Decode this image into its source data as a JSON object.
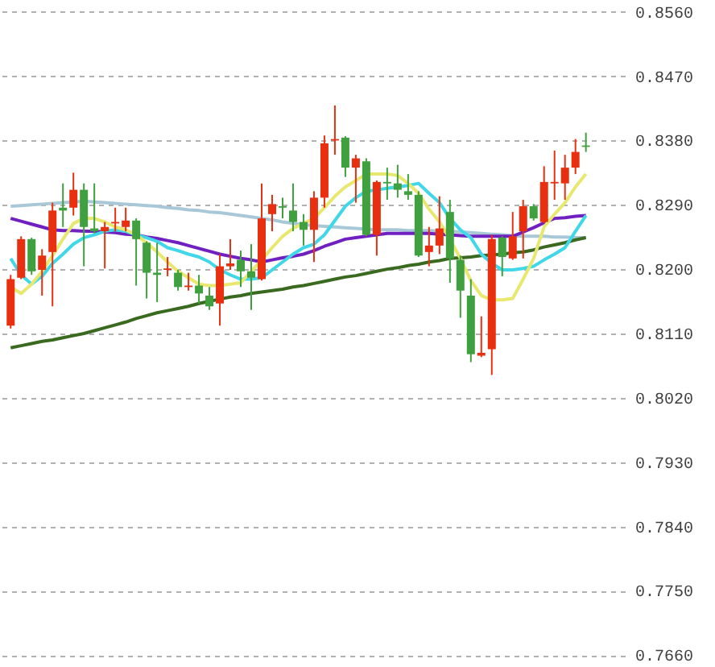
{
  "chart_data": {
    "type": "candlestick",
    "categories": [
      null,
      null,
      null,
      null,
      null,
      null,
      null,
      null,
      null,
      null,
      null,
      null,
      null,
      null,
      null,
      null,
      null,
      null,
      null,
      null,
      null,
      null,
      null,
      null,
      null,
      null,
      null,
      null,
      null,
      null,
      null,
      null,
      null,
      null,
      null,
      null,
      null,
      null,
      null,
      null,
      null,
      null,
      null,
      null,
      null,
      null,
      null,
      null,
      null,
      null,
      null,
      null,
      null,
      null,
      null,
      null
    ],
    "ohlc": [
      [
        0.8121,
        0.8192,
        0.8117,
        0.8186
      ],
      [
        0.8188,
        0.8246,
        0.8186,
        0.8242
      ],
      [
        0.8242,
        0.8244,
        0.8192,
        0.8197
      ],
      [
        0.8199,
        0.8228,
        0.8163,
        0.8219
      ],
      [
        0.8224,
        0.8293,
        0.8148,
        0.8282
      ],
      [
        0.8286,
        0.832,
        0.8259,
        0.8282
      ],
      [
        0.8286,
        0.8335,
        0.8275,
        0.8311
      ],
      [
        0.8311,
        0.832,
        0.8204,
        0.8259
      ],
      [
        0.8257,
        0.832,
        0.825,
        0.8253
      ],
      [
        0.8253,
        0.8266,
        0.8201,
        0.8259
      ],
      [
        0.8264,
        0.8286,
        0.8253,
        0.8266
      ],
      [
        0.8259,
        0.8286,
        0.8253,
        0.8268
      ],
      [
        0.8268,
        0.8271,
        0.8177,
        0.8242
      ],
      [
        0.8237,
        0.8239,
        0.8159,
        0.8195
      ],
      [
        0.8195,
        0.8237,
        0.8154,
        0.8192
      ],
      [
        0.8199,
        0.8217,
        0.819,
        0.8201
      ],
      [
        0.8195,
        0.8199,
        0.817,
        0.8175
      ],
      [
        0.8175,
        0.8195,
        0.817,
        0.8177
      ],
      [
        0.8177,
        0.8192,
        0.8152,
        0.8166
      ],
      [
        0.8163,
        0.8175,
        0.8143,
        0.8148
      ],
      [
        0.8152,
        0.8221,
        0.8121,
        0.8204
      ],
      [
        0.8204,
        0.8242,
        0.8199,
        0.8208
      ],
      [
        0.8213,
        0.8226,
        0.8175,
        0.8197
      ],
      [
        0.8197,
        0.8235,
        0.8143,
        0.8188
      ],
      [
        0.8186,
        0.832,
        0.8184,
        0.8271
      ],
      [
        0.8277,
        0.8304,
        0.8253,
        0.8291
      ],
      [
        0.8288,
        0.83,
        0.8271,
        0.8286
      ],
      [
        0.8282,
        0.832,
        0.8253,
        0.8266
      ],
      [
        0.8266,
        0.8277,
        0.8233,
        0.8255
      ],
      [
        0.8255,
        0.8309,
        0.821,
        0.83
      ],
      [
        0.83,
        0.8387,
        0.8286,
        0.8376
      ],
      [
        0.838,
        0.8429,
        0.836,
        0.8382
      ],
      [
        0.8384,
        0.8386,
        0.8329,
        0.8342
      ],
      [
        0.8342,
        0.836,
        0.8293,
        0.8355
      ],
      [
        0.8351,
        0.8355,
        0.8246,
        0.8248
      ],
      [
        0.8248,
        0.8324,
        0.8219,
        0.8322
      ],
      [
        0.8322,
        0.8342,
        0.8297,
        0.832
      ],
      [
        0.832,
        0.8346,
        0.83,
        0.8311
      ],
      [
        0.8309,
        0.8333,
        0.8297,
        0.8304
      ],
      [
        0.8304,
        0.8309,
        0.8217,
        0.8219
      ],
      [
        0.8224,
        0.8259,
        0.8204,
        0.8233
      ],
      [
        0.8233,
        0.8302,
        0.8221,
        0.8257
      ],
      [
        0.828,
        0.8297,
        0.8181,
        0.8215
      ],
      [
        0.8213,
        0.8219,
        0.8132,
        0.817
      ],
      [
        0.8163,
        0.8186,
        0.807,
        0.8081
      ],
      [
        0.8079,
        0.8134,
        0.8077,
        0.8083
      ],
      [
        0.8088,
        0.8248,
        0.8052,
        0.8242
      ],
      [
        0.8244,
        0.8246,
        0.819,
        0.8217
      ],
      [
        0.8215,
        0.828,
        0.8213,
        0.8246
      ],
      [
        0.8253,
        0.8297,
        0.8215,
        0.8288
      ],
      [
        0.8288,
        0.8291,
        0.8268,
        0.8271
      ],
      [
        0.8266,
        0.8344,
        0.8264,
        0.8322
      ],
      [
        0.832,
        0.8366,
        0.8297,
        0.8322
      ],
      [
        0.832,
        0.836,
        0.8297,
        0.8342
      ],
      [
        0.8342,
        0.8382,
        0.8333,
        0.8364
      ],
      [
        0.8373,
        0.8391,
        0.8364,
        0.8371
      ]
    ],
    "colors": [
      "#e83010",
      "#e83010",
      "#40a040",
      "#e83010",
      "#e83010",
      "#40a040",
      "#e83010",
      "#40a040",
      "#40a040",
      "#e83010",
      "#e83010",
      "#e83010",
      "#40a040",
      "#40a040",
      "#40a040",
      "#e83010",
      "#40a040",
      "#e83010",
      "#40a040",
      "#40a040",
      "#e83010",
      "#e83010",
      "#40a040",
      "#40a040",
      "#e83010",
      "#e83010",
      "#40a040",
      "#40a040",
      "#40a040",
      "#e83010",
      "#e83010",
      "#e83010",
      "#40a040",
      "#e83010",
      "#40a040",
      "#e83010",
      "#40a040",
      "#40a040",
      "#40a040",
      "#40a040",
      "#e83010",
      "#e83010",
      "#40a040",
      "#40a040",
      "#40a040",
      "#e83010",
      "#e83010",
      "#40a040",
      "#e83010",
      "#e83010",
      "#40a040",
      "#e83010",
      "#e83010",
      "#e83010",
      "#e83010",
      "#40a040"
    ],
    "series": [
      {
        "type": "line",
        "color": "#a8c8d8",
        "values": [
          0.8288,
          0.8289,
          0.829,
          0.8291,
          0.8292,
          0.8293,
          0.8294,
          0.8295,
          0.8294,
          0.8293,
          0.8292,
          0.8291,
          0.829,
          0.8289,
          0.8288,
          0.8286,
          0.8285,
          0.8283,
          0.8282,
          0.828,
          0.8279,
          0.8277,
          0.8275,
          0.8273,
          0.8271,
          0.8269,
          0.8266,
          0.8264,
          0.8262,
          0.8261,
          0.826,
          0.8259,
          0.8258,
          0.8257,
          0.8256,
          0.8255,
          0.8255,
          0.8255,
          0.8254,
          0.8254,
          0.8254,
          0.8253,
          0.8253,
          0.8252,
          0.8251,
          0.825,
          0.8249,
          0.8248,
          0.8247,
          0.8246,
          0.8246,
          0.8246,
          0.8245,
          0.8245,
          0.8244,
          0.8244
        ]
      },
      {
        "type": "line",
        "color": "#3a6a20",
        "values": [
          0.809,
          0.8093,
          0.8096,
          0.8099,
          0.8101,
          0.8104,
          0.8107,
          0.811,
          0.8114,
          0.8118,
          0.8122,
          0.8126,
          0.8131,
          0.8135,
          0.8139,
          0.8142,
          0.8145,
          0.8148,
          0.8152,
          0.8155,
          0.8158,
          0.8161,
          0.8163,
          0.8166,
          0.8168,
          0.817,
          0.8172,
          0.8175,
          0.8177,
          0.818,
          0.8183,
          0.8186,
          0.8189,
          0.8191,
          0.8194,
          0.8197,
          0.82,
          0.8202,
          0.8205,
          0.8207,
          0.821,
          0.8212,
          0.8215,
          0.8216,
          0.8217,
          0.8219,
          0.822,
          0.8221,
          0.8223,
          0.8224,
          0.8227,
          0.8231,
          0.8234,
          0.8237,
          0.8241,
          0.8244
        ]
      },
      {
        "type": "line",
        "color": "#7020c0",
        "values": [
          0.8271,
          0.8267,
          0.8263,
          0.8259,
          0.8255,
          0.8254,
          0.8254,
          0.8253,
          0.8253,
          0.8252,
          0.8251,
          0.8249,
          0.8248,
          0.8245,
          0.8243,
          0.824,
          0.8237,
          0.8233,
          0.8229,
          0.8225,
          0.8221,
          0.8218,
          0.8215,
          0.8213,
          0.821,
          0.8213,
          0.8216,
          0.8218,
          0.8221,
          0.8226,
          0.8232,
          0.8237,
          0.8242,
          0.8244,
          0.8246,
          0.8248,
          0.825,
          0.825,
          0.825,
          0.825,
          0.825,
          0.8249,
          0.8248,
          0.8247,
          0.8246,
          0.8246,
          0.8246,
          0.8246,
          0.8246,
          0.8252,
          0.8258,
          0.8265,
          0.8271,
          0.8272,
          0.8274,
          0.8275
        ]
      },
      {
        "type": "line",
        "color": "#40d8e8",
        "values": [
          0.8215,
          0.8192,
          0.8179,
          0.819,
          0.8208,
          0.8221,
          0.8235,
          0.8244,
          0.8248,
          0.8253,
          0.8255,
          0.8253,
          0.8248,
          0.8244,
          0.8239,
          0.823,
          0.8226,
          0.8221,
          0.8217,
          0.821,
          0.8199,
          0.8192,
          0.8186,
          0.8186,
          0.8188,
          0.8199,
          0.821,
          0.8221,
          0.823,
          0.8235,
          0.8248,
          0.8268,
          0.8288,
          0.83,
          0.8309,
          0.8311,
          0.8313,
          0.8315,
          0.8317,
          0.832,
          0.8306,
          0.8293,
          0.8271,
          0.8255,
          0.8244,
          0.8221,
          0.8208,
          0.8199,
          0.8199,
          0.8201,
          0.8204,
          0.8213,
          0.8221,
          0.823,
          0.8253,
          0.8275
        ]
      },
      {
        "type": "line",
        "color": "#e8e870",
        "values": [
          0.8175,
          0.8166,
          0.8179,
          0.8197,
          0.8219,
          0.8242,
          0.8264,
          0.8271,
          0.8271,
          0.8266,
          0.8259,
          0.8255,
          0.8248,
          0.8237,
          0.8224,
          0.821,
          0.8197,
          0.8188,
          0.8179,
          0.8177,
          0.8177,
          0.8179,
          0.8181,
          0.8197,
          0.8213,
          0.823,
          0.8246,
          0.8257,
          0.8264,
          0.8271,
          0.8286,
          0.8302,
          0.8315,
          0.8324,
          0.8333,
          0.8333,
          0.8333,
          0.8331,
          0.832,
          0.8306,
          0.8284,
          0.8266,
          0.8242,
          0.8215,
          0.8184,
          0.8163,
          0.8157,
          0.8157,
          0.8159,
          0.8186,
          0.8215,
          0.8259,
          0.8277,
          0.8293,
          0.8315,
          0.8333
        ]
      }
    ],
    "ylim": [
      0.7648,
      0.8572
    ],
    "yticks": [
      {
        "value": 0.856,
        "label": "0.8560"
      },
      {
        "value": 0.847,
        "label": "0.8470"
      },
      {
        "value": 0.838,
        "label": "0.8380"
      },
      {
        "value": 0.829,
        "label": "0.8290"
      },
      {
        "value": 0.82,
        "label": "0.8200"
      },
      {
        "value": 0.811,
        "label": "0.8110"
      },
      {
        "value": 0.802,
        "label": "0.8020"
      },
      {
        "value": 0.793,
        "label": "0.7930"
      },
      {
        "value": 0.784,
        "label": "0.7840"
      },
      {
        "value": 0.775,
        "label": "0.7750"
      },
      {
        "value": 0.766,
        "label": "0.7660"
      }
    ],
    "tick_labels": "y",
    "grid": "y",
    "legend": false
  }
}
